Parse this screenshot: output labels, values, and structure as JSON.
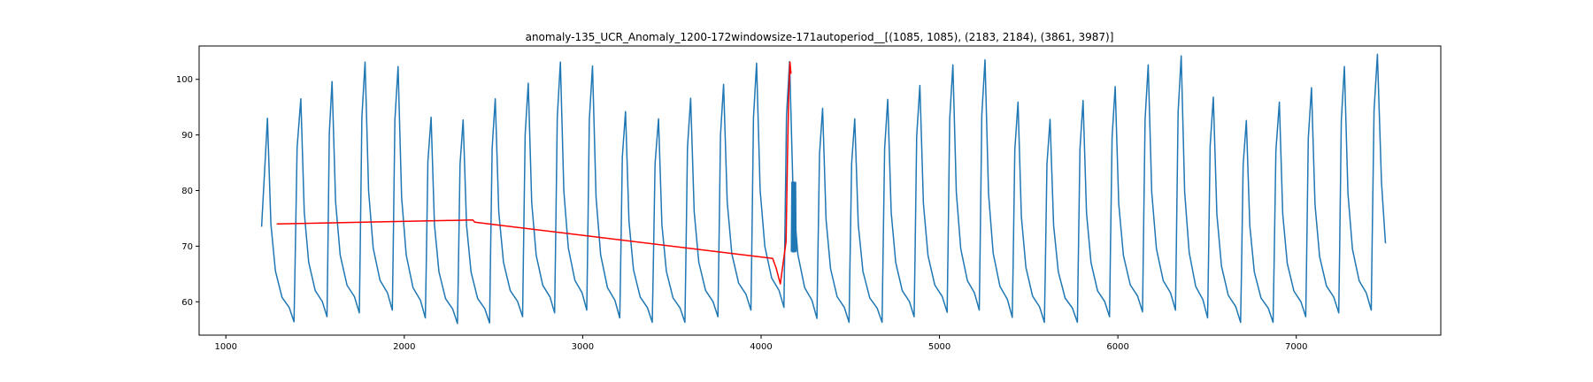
{
  "chart_data": {
    "type": "line",
    "title": "anomaly-135_UCR_Anomaly_1200-172windowsize-171autoperiod__[(1085, 1085), (2183, 2184), (3861, 3987)]",
    "xlabel": "",
    "ylabel": "",
    "xlim": [
      850,
      7810
    ],
    "ylim": [
      54,
      106
    ],
    "grid": false,
    "x_ticks": [
      1000,
      2000,
      3000,
      4000,
      5000,
      6000,
      7000
    ],
    "y_ticks": [
      60,
      70,
      80,
      90,
      100
    ],
    "x_tick_labels": [
      "1000",
      "2000",
      "3000",
      "4000",
      "5000",
      "6000",
      "7000"
    ],
    "y_tick_labels": [
      "60",
      "70",
      "80",
      "90",
      "100"
    ],
    "series": [
      {
        "color": "#1f77b4",
        "x_start": 1200,
        "x_end": 7500,
        "start_value": 73.5,
        "end_value": 70.5,
        "cycle_peaks": [
          {
            "x": 1233,
            "value": 93.0
          },
          {
            "x": 1420,
            "value": 96.5
          },
          {
            "x": 1595,
            "value": 99.6
          },
          {
            "x": 1780,
            "value": 103.1
          },
          {
            "x": 1965,
            "value": 102.3
          },
          {
            "x": 2150,
            "value": 93.2
          },
          {
            "x": 2330,
            "value": 92.7
          },
          {
            "x": 2510,
            "value": 96.5
          },
          {
            "x": 2695,
            "value": 99.3
          },
          {
            "x": 2875,
            "value": 103.1
          },
          {
            "x": 3055,
            "value": 102.4
          },
          {
            "x": 3240,
            "value": 94.2
          },
          {
            "x": 3425,
            "value": 92.9
          },
          {
            "x": 3605,
            "value": 96.6
          },
          {
            "x": 3790,
            "value": 99.1
          },
          {
            "x": 3975,
            "value": 102.9
          },
          {
            "x": 4160,
            "value": 103.2
          },
          {
            "x": 4345,
            "value": 94.8
          },
          {
            "x": 4525,
            "value": 92.9
          },
          {
            "x": 4710,
            "value": 96.4
          },
          {
            "x": 4890,
            "value": 98.9
          },
          {
            "x": 5075,
            "value": 102.6
          },
          {
            "x": 5255,
            "value": 103.5
          },
          {
            "x": 5440,
            "value": 95.9
          },
          {
            "x": 5620,
            "value": 92.8
          },
          {
            "x": 5805,
            "value": 96.2
          },
          {
            "x": 5985,
            "value": 98.7
          },
          {
            "x": 6170,
            "value": 102.6
          },
          {
            "x": 6355,
            "value": 104.2
          },
          {
            "x": 6535,
            "value": 96.8
          },
          {
            "x": 6720,
            "value": 92.6
          },
          {
            "x": 6905,
            "value": 95.9
          },
          {
            "x": 7085,
            "value": 98.5
          },
          {
            "x": 7270,
            "value": 102.3
          },
          {
            "x": 7455,
            "value": 104.5
          }
        ],
        "cycle_troughs": [
          {
            "x": 1382,
            "value": 56.4
          },
          {
            "x": 1567,
            "value": 57.3
          },
          {
            "x": 1748,
            "value": 58.0
          },
          {
            "x": 1933,
            "value": 58.5
          },
          {
            "x": 2118,
            "value": 57.1
          },
          {
            "x": 2298,
            "value": 56.1
          },
          {
            "x": 2478,
            "value": 56.2
          },
          {
            "x": 2663,
            "value": 57.3
          },
          {
            "x": 2843,
            "value": 58.0
          },
          {
            "x": 3023,
            "value": 58.5
          },
          {
            "x": 3208,
            "value": 57.1
          },
          {
            "x": 3390,
            "value": 56.3
          },
          {
            "x": 3573,
            "value": 56.3
          },
          {
            "x": 3758,
            "value": 57.3
          },
          {
            "x": 3943,
            "value": 58.5
          },
          {
            "x": 4128,
            "value": 59.0
          },
          {
            "x": 4313,
            "value": 57.0
          },
          {
            "x": 4493,
            "value": 56.3
          },
          {
            "x": 4678,
            "value": 56.3
          },
          {
            "x": 4858,
            "value": 57.3
          },
          {
            "x": 5043,
            "value": 58.1
          },
          {
            "x": 5223,
            "value": 58.5
          },
          {
            "x": 5408,
            "value": 57.2
          },
          {
            "x": 5588,
            "value": 56.3
          },
          {
            "x": 5773,
            "value": 56.3
          },
          {
            "x": 5953,
            "value": 57.3
          },
          {
            "x": 6138,
            "value": 58.2
          },
          {
            "x": 6323,
            "value": 58.5
          },
          {
            "x": 6503,
            "value": 57.1
          },
          {
            "x": 6688,
            "value": 56.3
          },
          {
            "x": 6870,
            "value": 56.3
          },
          {
            "x": 7053,
            "value": 57.3
          },
          {
            "x": 7238,
            "value": 58.0
          },
          {
            "x": 7420,
            "value": 58.5
          }
        ],
        "noise_burst": {
          "x": [
            4170,
            4196
          ],
          "value_range": [
            69,
            81.5
          ]
        }
      },
      {
        "color": "#ff0000",
        "points": [
          [
            1285,
            74.0
          ],
          [
            2385,
            74.7
          ],
          [
            2395,
            74.3
          ],
          [
            4065,
            67.8
          ],
          [
            4085,
            66.0
          ],
          [
            4108,
            63.2
          ],
          [
            4140,
            70.8
          ],
          [
            4148,
            86.0
          ],
          [
            4155,
            97.0
          ],
          [
            4162,
            103.1
          ],
          [
            4168,
            101.0
          ]
        ]
      }
    ]
  }
}
